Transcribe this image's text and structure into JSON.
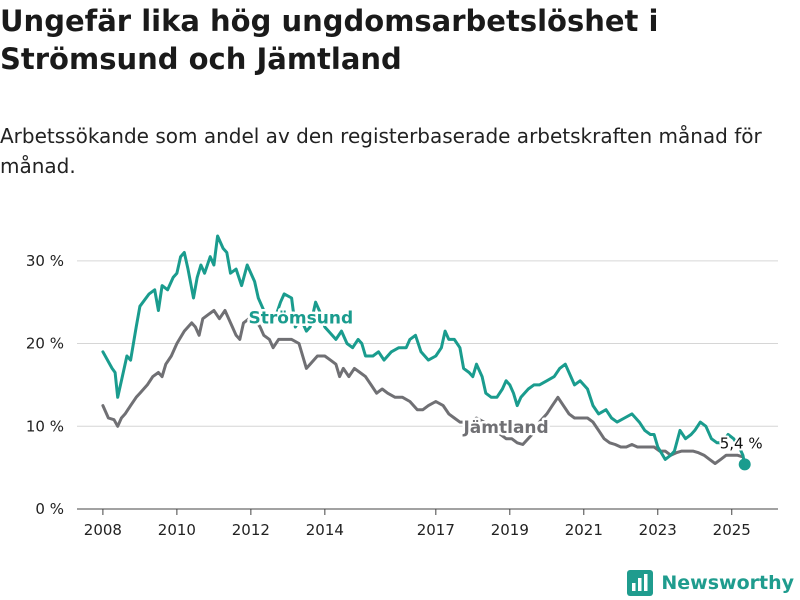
{
  "title": "Ungefär lika hög ungdomsarbetslöshet i Strömsund och Jämtland",
  "subtitle": "Arbetssökande som andel av den registerbaserade arbetskraften månad för månad.",
  "brand": {
    "name": "Newsworthy",
    "icon": "bar-chart-logo-icon"
  },
  "colors": {
    "stromsund": "#1a9c8e",
    "jamtland": "#707074",
    "grid": "#d6d6d6",
    "text": "#222222"
  },
  "chart_data": {
    "type": "line",
    "xlim": [
      2007.3,
      2026.25
    ],
    "ylim": [
      0,
      33
    ],
    "y_ticks": [
      {
        "value": 0,
        "label": "0 %"
      },
      {
        "value": 10,
        "label": "10 %"
      },
      {
        "value": 20,
        "label": "20 %"
      },
      {
        "value": 30,
        "label": "30 %"
      }
    ],
    "x_ticks": [
      {
        "value": 2008,
        "label": "2008"
      },
      {
        "value": 2010,
        "label": "2010"
      },
      {
        "value": 2012,
        "label": "2012"
      },
      {
        "value": 2014,
        "label": "2014"
      },
      {
        "value": 2017,
        "label": "2017"
      },
      {
        "value": 2019,
        "label": "2019"
      },
      {
        "value": 2021,
        "label": "2021"
      },
      {
        "value": 2023,
        "label": "2023"
      },
      {
        "value": 2025,
        "label": "2025"
      }
    ],
    "grid": true,
    "legend": "inline labels",
    "end_label": "5,4 %",
    "series": [
      {
        "name": "Strömsund",
        "label_at": [
          2013.35,
          22.4
        ],
        "points": [
          [
            2008.0,
            19.0
          ],
          [
            2008.25,
            17.0
          ],
          [
            2008.33,
            16.5
          ],
          [
            2008.4,
            13.5
          ],
          [
            2008.5,
            15.5
          ],
          [
            2008.65,
            18.5
          ],
          [
            2008.75,
            18.0
          ],
          [
            2008.9,
            22.0
          ],
          [
            2009.0,
            24.5
          ],
          [
            2009.25,
            26.0
          ],
          [
            2009.4,
            26.5
          ],
          [
            2009.5,
            24.0
          ],
          [
            2009.6,
            27.0
          ],
          [
            2009.75,
            26.5
          ],
          [
            2009.9,
            28.0
          ],
          [
            2010.0,
            28.5
          ],
          [
            2010.1,
            30.5
          ],
          [
            2010.2,
            31.0
          ],
          [
            2010.3,
            29.0
          ],
          [
            2010.45,
            25.5
          ],
          [
            2010.55,
            28.0
          ],
          [
            2010.65,
            29.5
          ],
          [
            2010.75,
            28.5
          ],
          [
            2010.9,
            30.5
          ],
          [
            2011.0,
            29.5
          ],
          [
            2011.1,
            33.0
          ],
          [
            2011.25,
            31.5
          ],
          [
            2011.35,
            31.0
          ],
          [
            2011.45,
            28.5
          ],
          [
            2011.6,
            29.0
          ],
          [
            2011.75,
            27.0
          ],
          [
            2011.9,
            29.5
          ],
          [
            2012.0,
            28.5
          ],
          [
            2012.1,
            27.5
          ],
          [
            2012.2,
            25.5
          ],
          [
            2012.35,
            24.0
          ],
          [
            2012.5,
            22.5
          ],
          [
            2012.65,
            23.0
          ],
          [
            2012.8,
            25.0
          ],
          [
            2012.9,
            26.0
          ],
          [
            2013.1,
            25.5
          ],
          [
            2013.2,
            22.0
          ],
          [
            2013.35,
            23.0
          ],
          [
            2013.5,
            21.5
          ],
          [
            2013.6,
            22.0
          ],
          [
            2013.75,
            25.0
          ],
          [
            2013.9,
            23.5
          ],
          [
            2014.0,
            22.0
          ],
          [
            2014.2,
            21.0
          ],
          [
            2014.3,
            20.5
          ],
          [
            2014.45,
            21.5
          ],
          [
            2014.6,
            20.0
          ],
          [
            2014.75,
            19.5
          ],
          [
            2014.9,
            20.5
          ],
          [
            2015.0,
            20.0
          ],
          [
            2015.1,
            18.5
          ],
          [
            2015.3,
            18.5
          ],
          [
            2015.45,
            19.0
          ],
          [
            2015.6,
            18.0
          ],
          [
            2015.8,
            19.0
          ],
          [
            2016.0,
            19.5
          ],
          [
            2016.2,
            19.5
          ],
          [
            2016.3,
            20.5
          ],
          [
            2016.45,
            21.0
          ],
          [
            2016.6,
            19.0
          ],
          [
            2016.8,
            18.0
          ],
          [
            2017.0,
            18.5
          ],
          [
            2017.15,
            19.5
          ],
          [
            2017.25,
            21.5
          ],
          [
            2017.35,
            20.5
          ],
          [
            2017.5,
            20.5
          ],
          [
            2017.65,
            19.5
          ],
          [
            2017.75,
            17.0
          ],
          [
            2017.9,
            16.5
          ],
          [
            2018.0,
            16.0
          ],
          [
            2018.1,
            17.5
          ],
          [
            2018.25,
            16.0
          ],
          [
            2018.35,
            14.0
          ],
          [
            2018.5,
            13.5
          ],
          [
            2018.65,
            13.5
          ],
          [
            2018.8,
            14.5
          ],
          [
            2018.9,
            15.5
          ],
          [
            2019.0,
            15.0
          ],
          [
            2019.1,
            14.0
          ],
          [
            2019.2,
            12.5
          ],
          [
            2019.3,
            13.5
          ],
          [
            2019.5,
            14.5
          ],
          [
            2019.65,
            15.0
          ],
          [
            2019.8,
            15.0
          ],
          [
            2020.0,
            15.5
          ],
          [
            2020.2,
            16.0
          ],
          [
            2020.35,
            17.0
          ],
          [
            2020.5,
            17.5
          ],
          [
            2020.6,
            16.5
          ],
          [
            2020.75,
            15.0
          ],
          [
            2020.9,
            15.5
          ],
          [
            2021.1,
            14.5
          ],
          [
            2021.25,
            12.5
          ],
          [
            2021.4,
            11.5
          ],
          [
            2021.6,
            12.0
          ],
          [
            2021.75,
            11.0
          ],
          [
            2021.9,
            10.5
          ],
          [
            2022.1,
            11.0
          ],
          [
            2022.3,
            11.5
          ],
          [
            2022.5,
            10.5
          ],
          [
            2022.65,
            9.5
          ],
          [
            2022.8,
            9.0
          ],
          [
            2022.9,
            9.0
          ],
          [
            2023.0,
            7.5
          ],
          [
            2023.2,
            6.0
          ],
          [
            2023.35,
            6.5
          ],
          [
            2023.45,
            7.0
          ],
          [
            2023.6,
            9.5
          ],
          [
            2023.75,
            8.5
          ],
          [
            2023.9,
            9.0
          ],
          [
            2024.0,
            9.5
          ],
          [
            2024.15,
            10.5
          ],
          [
            2024.3,
            10.0
          ],
          [
            2024.45,
            8.5
          ],
          [
            2024.6,
            8.0
          ],
          [
            2024.75,
            8.0
          ],
          [
            2024.9,
            9.0
          ],
          [
            2025.05,
            8.5
          ],
          [
            2025.2,
            7.5
          ],
          [
            2025.3,
            6.5
          ],
          [
            2025.35,
            5.4
          ]
        ]
      },
      {
        "name": "Jämtland",
        "label_at": [
          2018.9,
          9.2
        ],
        "points": [
          [
            2008.0,
            12.5
          ],
          [
            2008.15,
            11.0
          ],
          [
            2008.3,
            10.8
          ],
          [
            2008.4,
            10.0
          ],
          [
            2008.5,
            11.0
          ],
          [
            2008.6,
            11.5
          ],
          [
            2008.75,
            12.5
          ],
          [
            2008.9,
            13.5
          ],
          [
            2009.0,
            14.0
          ],
          [
            2009.2,
            15.0
          ],
          [
            2009.35,
            16.0
          ],
          [
            2009.5,
            16.5
          ],
          [
            2009.6,
            16.0
          ],
          [
            2009.7,
            17.5
          ],
          [
            2009.85,
            18.5
          ],
          [
            2010.0,
            20.0
          ],
          [
            2010.2,
            21.5
          ],
          [
            2010.4,
            22.5
          ],
          [
            2010.5,
            22.0
          ],
          [
            2010.6,
            21.0
          ],
          [
            2010.7,
            23.0
          ],
          [
            2010.85,
            23.5
          ],
          [
            2011.0,
            24.0
          ],
          [
            2011.15,
            23.0
          ],
          [
            2011.3,
            24.0
          ],
          [
            2011.4,
            23.0
          ],
          [
            2011.5,
            22.0
          ],
          [
            2011.6,
            21.0
          ],
          [
            2011.7,
            20.5
          ],
          [
            2011.8,
            22.5
          ],
          [
            2011.95,
            23.0
          ],
          [
            2012.1,
            23.0
          ],
          [
            2012.25,
            22.0
          ],
          [
            2012.35,
            21.0
          ],
          [
            2012.5,
            20.5
          ],
          [
            2012.6,
            19.5
          ],
          [
            2012.75,
            20.5
          ],
          [
            2012.95,
            20.5
          ],
          [
            2013.1,
            20.5
          ],
          [
            2013.3,
            20.0
          ],
          [
            2013.4,
            18.5
          ],
          [
            2013.5,
            17.0
          ],
          [
            2013.6,
            17.5
          ],
          [
            2013.8,
            18.5
          ],
          [
            2014.0,
            18.5
          ],
          [
            2014.15,
            18.0
          ],
          [
            2014.3,
            17.5
          ],
          [
            2014.4,
            16.0
          ],
          [
            2014.5,
            17.0
          ],
          [
            2014.65,
            16.0
          ],
          [
            2014.8,
            17.0
          ],
          [
            2014.95,
            16.5
          ],
          [
            2015.1,
            16.0
          ],
          [
            2015.25,
            15.0
          ],
          [
            2015.4,
            14.0
          ],
          [
            2015.55,
            14.5
          ],
          [
            2015.7,
            14.0
          ],
          [
            2015.9,
            13.5
          ],
          [
            2016.1,
            13.5
          ],
          [
            2016.3,
            13.0
          ],
          [
            2016.5,
            12.0
          ],
          [
            2016.65,
            12.0
          ],
          [
            2016.8,
            12.5
          ],
          [
            2017.0,
            13.0
          ],
          [
            2017.2,
            12.5
          ],
          [
            2017.35,
            11.5
          ],
          [
            2017.5,
            11.0
          ],
          [
            2017.65,
            10.5
          ],
          [
            2017.8,
            10.5
          ],
          [
            2017.95,
            10.5
          ],
          [
            2018.1,
            11.0
          ],
          [
            2018.3,
            10.5
          ],
          [
            2018.45,
            10.0
          ],
          [
            2018.6,
            9.5
          ],
          [
            2018.75,
            9.0
          ],
          [
            2018.9,
            8.5
          ],
          [
            2019.05,
            8.5
          ],
          [
            2019.2,
            8.0
          ],
          [
            2019.35,
            7.8
          ],
          [
            2019.6,
            9.0
          ],
          [
            2019.8,
            10.5
          ],
          [
            2020.0,
            11.5
          ],
          [
            2020.15,
            12.5
          ],
          [
            2020.3,
            13.5
          ],
          [
            2020.45,
            12.5
          ],
          [
            2020.6,
            11.5
          ],
          [
            2020.75,
            11.0
          ],
          [
            2020.9,
            11.0
          ],
          [
            2021.1,
            11.0
          ],
          [
            2021.25,
            10.5
          ],
          [
            2021.4,
            9.5
          ],
          [
            2021.55,
            8.5
          ],
          [
            2021.7,
            8.0
          ],
          [
            2021.85,
            7.8
          ],
          [
            2022.0,
            7.5
          ],
          [
            2022.15,
            7.5
          ],
          [
            2022.3,
            7.8
          ],
          [
            2022.45,
            7.5
          ],
          [
            2022.6,
            7.5
          ],
          [
            2022.75,
            7.5
          ],
          [
            2022.9,
            7.5
          ],
          [
            2023.05,
            7.0
          ],
          [
            2023.2,
            7.0
          ],
          [
            2023.35,
            6.5
          ],
          [
            2023.5,
            6.8
          ],
          [
            2023.65,
            7.0
          ],
          [
            2023.8,
            7.0
          ],
          [
            2023.95,
            7.0
          ],
          [
            2024.1,
            6.8
          ],
          [
            2024.25,
            6.5
          ],
          [
            2024.4,
            6.0
          ],
          [
            2024.55,
            5.5
          ],
          [
            2024.7,
            6.0
          ],
          [
            2024.85,
            6.5
          ],
          [
            2025.0,
            6.5
          ],
          [
            2025.15,
            6.5
          ],
          [
            2025.3,
            6.3
          ]
        ]
      }
    ]
  }
}
